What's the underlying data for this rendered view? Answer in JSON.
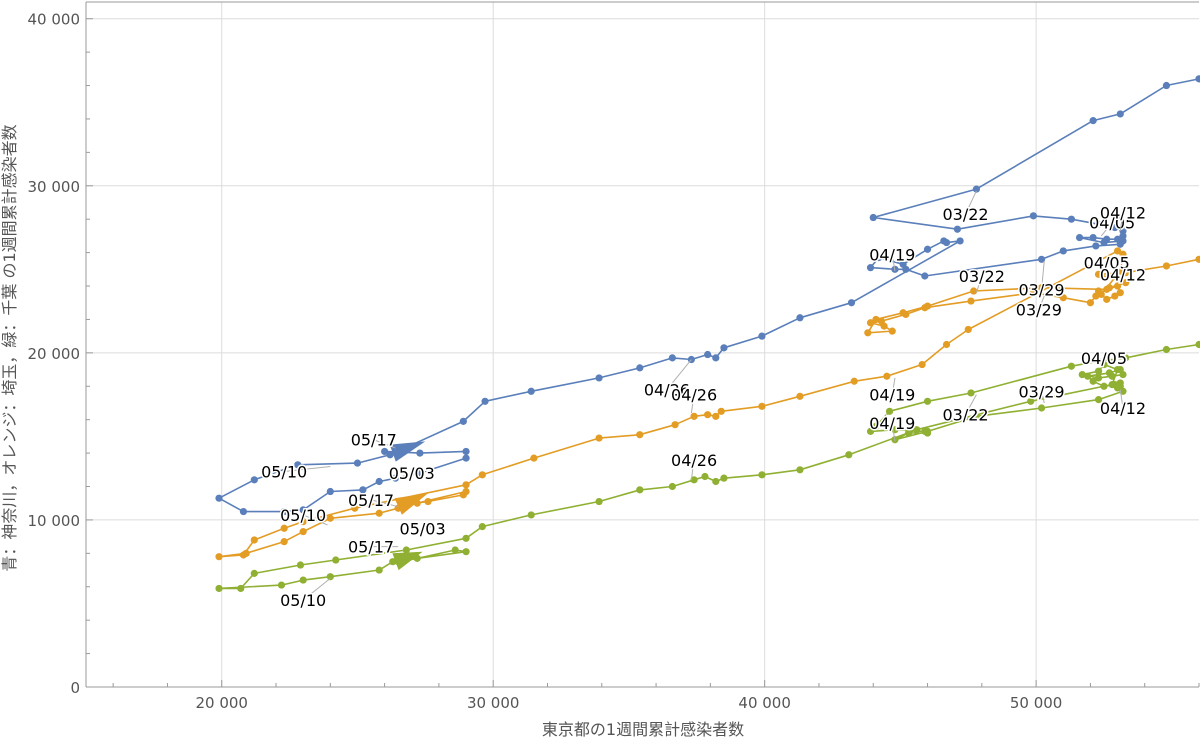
{
  "chart_data": {
    "type": "line",
    "title": "",
    "xlabel": "東京都の1週間累計感染者数",
    "ylabel": "青：神奈川，オレンジ：埼玉，緑：千葉 の1週間累計感染者数",
    "xlim": [
      15000,
      56000
    ],
    "ylim": [
      0,
      41000
    ],
    "grid": true,
    "x_ticks": [
      {
        "value": 20000,
        "label": "20 000"
      },
      {
        "value": 30000,
        "label": "30 000"
      },
      {
        "value": 40000,
        "label": "40 000"
      },
      {
        "value": 50000,
        "label": "50 000"
      }
    ],
    "y_ticks": [
      {
        "value": 0,
        "label": "0"
      },
      {
        "value": 10000,
        "label": "10 000"
      },
      {
        "value": 20000,
        "label": "20 000"
      },
      {
        "value": 30000,
        "label": "30 000"
      },
      {
        "value": 40000,
        "label": "40 000"
      }
    ],
    "series": [
      {
        "color": "#5a7fba",
        "points": [
          [
            56000,
            36400
          ],
          [
            54800,
            36000
          ],
          [
            53100,
            34300
          ],
          [
            52100,
            33900
          ],
          [
            47800,
            29800
          ],
          [
            44000,
            28100
          ],
          [
            47100,
            27400
          ],
          [
            49900,
            28200
          ],
          [
            51300,
            28000
          ],
          [
            52300,
            27700
          ],
          [
            52900,
            27500
          ],
          [
            53200,
            27300
          ],
          [
            53200,
            27000
          ],
          [
            53000,
            26800
          ],
          [
            52600,
            26800
          ],
          [
            52100,
            26900
          ],
          [
            51600,
            26900
          ],
          [
            52500,
            26600
          ],
          [
            53200,
            26700
          ],
          [
            53100,
            26500
          ],
          [
            52200,
            26400
          ],
          [
            51000,
            26100
          ],
          [
            50200,
            25600
          ],
          [
            45900,
            24600
          ],
          [
            45200,
            25000
          ],
          [
            44800,
            25000
          ],
          [
            43900,
            25100
          ],
          [
            44200,
            25700
          ],
          [
            45100,
            25300
          ],
          [
            46000,
            26200
          ],
          [
            46600,
            26700
          ],
          [
            46700,
            26600
          ],
          [
            47200,
            26700
          ],
          [
            43200,
            23000
          ],
          [
            41300,
            22100
          ],
          [
            39900,
            21000
          ],
          [
            38500,
            20300
          ],
          [
            38200,
            19700
          ],
          [
            37900,
            19900
          ],
          [
            37300,
            19600
          ],
          [
            36600,
            19700
          ],
          [
            35400,
            19100
          ],
          [
            33900,
            18500
          ],
          [
            31400,
            17700
          ],
          [
            29700,
            17100
          ],
          [
            28900,
            15900
          ],
          [
            26200,
            13900
          ],
          [
            25000,
            13400
          ],
          [
            22800,
            13300
          ],
          [
            21200,
            12400
          ],
          [
            19900,
            11300
          ],
          [
            20800,
            10500
          ],
          [
            22300,
            10500
          ],
          [
            23000,
            10600
          ],
          [
            24000,
            11700
          ],
          [
            25200,
            11800
          ],
          [
            25800,
            12300
          ],
          [
            26400,
            12500
          ],
          [
            27300,
            12800
          ],
          [
            29000,
            13700
          ],
          [
            29000,
            14100
          ],
          [
            27300,
            14000
          ],
          [
            26000,
            14100
          ]
        ],
        "arrow": {
          "tip": [
            27500,
            14700
          ],
          "back": [
            26300,
            14000
          ]
        }
      },
      {
        "color": "#e39c24",
        "points": [
          [
            56000,
            25600
          ],
          [
            54800,
            25200
          ],
          [
            53300,
            24800
          ],
          [
            52300,
            24700
          ],
          [
            53300,
            24200
          ],
          [
            52700,
            23900
          ],
          [
            52300,
            23700
          ],
          [
            52200,
            23400
          ],
          [
            52000,
            23000
          ],
          [
            51000,
            23300
          ],
          [
            49900,
            23600
          ],
          [
            47600,
            23100
          ],
          [
            45900,
            22700
          ],
          [
            45200,
            22300
          ],
          [
            44300,
            21900
          ],
          [
            43900,
            21800
          ],
          [
            44400,
            21600
          ],
          [
            44700,
            21300
          ],
          [
            43800,
            21200
          ],
          [
            44100,
            22000
          ],
          [
            45100,
            22400
          ],
          [
            46000,
            22800
          ],
          [
            47700,
            23700
          ],
          [
            50200,
            23900
          ],
          [
            52600,
            23800
          ],
          [
            53000,
            24000
          ],
          [
            53100,
            23600
          ],
          [
            52900,
            23400
          ],
          [
            52600,
            23200
          ],
          [
            52400,
            23500
          ],
          [
            53100,
            24900
          ],
          [
            53200,
            25900
          ],
          [
            53000,
            26100
          ],
          [
            47500,
            21400
          ],
          [
            46700,
            20500
          ],
          [
            45800,
            19300
          ],
          [
            44500,
            18600
          ],
          [
            43300,
            18300
          ],
          [
            41300,
            17400
          ],
          [
            39900,
            16800
          ],
          [
            38400,
            16500
          ],
          [
            38200,
            16200
          ],
          [
            37900,
            16300
          ],
          [
            37400,
            16200
          ],
          [
            36700,
            15700
          ],
          [
            35400,
            15100
          ],
          [
            33900,
            14900
          ],
          [
            31500,
            13700
          ],
          [
            29600,
            12700
          ],
          [
            29000,
            12100
          ],
          [
            24900,
            10700
          ],
          [
            23000,
            9900
          ],
          [
            22300,
            9500
          ],
          [
            21200,
            8800
          ],
          [
            20800,
            7900
          ],
          [
            19900,
            7800
          ],
          [
            20900,
            8000
          ],
          [
            22300,
            8700
          ],
          [
            23000,
            9300
          ],
          [
            24000,
            10100
          ],
          [
            25800,
            10400
          ],
          [
            26500,
            10700
          ],
          [
            27200,
            11000
          ],
          [
            29000,
            11700
          ],
          [
            28900,
            11500
          ],
          [
            27600,
            11100
          ],
          [
            26700,
            10900
          ]
        ],
        "arrow": {
          "tip": [
            27600,
            11600
          ],
          "back": [
            26500,
            10800
          ]
        }
      },
      {
        "color": "#8fb032",
        "points": [
          [
            56000,
            20500
          ],
          [
            54800,
            20200
          ],
          [
            53300,
            19700
          ],
          [
            52300,
            19500
          ],
          [
            51300,
            19200
          ],
          [
            47600,
            17600
          ],
          [
            46000,
            17100
          ],
          [
            44600,
            16500
          ],
          [
            44100,
            15600
          ],
          [
            43900,
            15300
          ],
          [
            44800,
            15400
          ],
          [
            45900,
            15300
          ],
          [
            46000,
            15200
          ],
          [
            45300,
            15200
          ],
          [
            44800,
            14800
          ],
          [
            46000,
            15300
          ],
          [
            47800,
            16200
          ],
          [
            50200,
            16700
          ],
          [
            52300,
            17200
          ],
          [
            53200,
            17700
          ],
          [
            53100,
            18000
          ],
          [
            52900,
            18100
          ],
          [
            52500,
            18000
          ],
          [
            52100,
            18300
          ],
          [
            51900,
            18600
          ],
          [
            52700,
            18800
          ],
          [
            53100,
            19000
          ],
          [
            53200,
            18700
          ],
          [
            52800,
            18600
          ],
          [
            52300,
            18500
          ],
          [
            51700,
            18700
          ],
          [
            52300,
            18900
          ],
          [
            52500,
            19300
          ],
          [
            53000,
            19000
          ],
          [
            52800,
            18100
          ],
          [
            53000,
            17900
          ],
          [
            53100,
            18200
          ],
          [
            49800,
            17100
          ],
          [
            45600,
            15400
          ],
          [
            43100,
            13900
          ],
          [
            41300,
            13000
          ],
          [
            39900,
            12700
          ],
          [
            38500,
            12500
          ],
          [
            38200,
            12300
          ],
          [
            37800,
            12600
          ],
          [
            37400,
            12400
          ],
          [
            36600,
            12000
          ],
          [
            35400,
            11800
          ],
          [
            33900,
            11100
          ],
          [
            31400,
            10300
          ],
          [
            29600,
            9600
          ],
          [
            29000,
            8900
          ],
          [
            26800,
            8200
          ],
          [
            24200,
            7600
          ],
          [
            22900,
            7300
          ],
          [
            21200,
            6800
          ],
          [
            20700,
            5900
          ],
          [
            19900,
            5900
          ],
          [
            22200,
            6100
          ],
          [
            23000,
            6400
          ],
          [
            24000,
            6600
          ],
          [
            25800,
            7000
          ],
          [
            26300,
            7500
          ],
          [
            29000,
            8100
          ],
          [
            28600,
            8200
          ],
          [
            27200,
            7700
          ],
          [
            26500,
            7500
          ]
        ],
        "arrow": {
          "tip": [
            27400,
            8100
          ],
          "back": [
            26400,
            7500
          ]
        }
      }
    ],
    "annotations": [
      {
        "text": "05/17",
        "x": 26400,
        "y": 14300,
        "lx": 25600,
        "ly": 14800
      },
      {
        "text": "05/10",
        "x": 24000,
        "y": 13200,
        "lx": 22300,
        "ly": 12900
      },
      {
        "text": "05/03",
        "x": 27200,
        "y": 12700,
        "lx": 27000,
        "ly": 12800
      },
      {
        "text": "05/17",
        "x": 26500,
        "y": 10800,
        "lx": 25500,
        "ly": 11200
      },
      {
        "text": "05/10",
        "x": 23900,
        "y": 9700,
        "lx": 23000,
        "ly": 10300
      },
      {
        "text": "05/03",
        "x": 28100,
        "y": 9700,
        "lx": 27400,
        "ly": 9500
      },
      {
        "text": "05/17",
        "x": 26500,
        "y": 8400,
        "lx": 25500,
        "ly": 8400
      },
      {
        "text": "05/10",
        "x": 24000,
        "y": 6500,
        "lx": 23000,
        "ly": 5200
      },
      {
        "text": "04/26",
        "x": 37300,
        "y": 19600,
        "lx": 36400,
        "ly": 17800
      },
      {
        "text": "04/26",
        "x": 37300,
        "y": 16400,
        "lx": 37400,
        "ly": 17500
      },
      {
        "text": "04/26",
        "x": 37300,
        "y": 12400,
        "lx": 37400,
        "ly": 13600
      },
      {
        "text": "04/19",
        "x": 44800,
        "y": 24900,
        "lx": 44700,
        "ly": 25900
      },
      {
        "text": "04/19",
        "x": 44800,
        "y": 18500,
        "lx": 44700,
        "ly": 17500
      },
      {
        "text": "04/19",
        "x": 44800,
        "y": 14700,
        "lx": 44700,
        "ly": 15800
      },
      {
        "text": "03/22",
        "x": 47800,
        "y": 29700,
        "lx": 47400,
        "ly": 28300
      },
      {
        "text": "03/22",
        "x": 47800,
        "y": 23600,
        "lx": 48000,
        "ly": 24600
      },
      {
        "text": "03/22",
        "x": 47800,
        "y": 17500,
        "lx": 47400,
        "ly": 16300
      },
      {
        "text": "03/29",
        "x": 50300,
        "y": 25500,
        "lx": 50200,
        "ly": 23800
      },
      {
        "text": "03/29",
        "x": 50300,
        "y": 23400,
        "lx": 50100,
        "ly": 22600
      },
      {
        "text": "03/29",
        "x": 50300,
        "y": 17000,
        "lx": 50200,
        "ly": 17700
      },
      {
        "text": "04/05",
        "x": 52400,
        "y": 27000,
        "lx": 52800,
        "ly": 27800
      },
      {
        "text": "04/05",
        "x": 52400,
        "y": 24800,
        "lx": 52600,
        "ly": 25400
      },
      {
        "text": "04/05",
        "x": 52400,
        "y": 19000,
        "lx": 52500,
        "ly": 19700
      },
      {
        "text": "04/12",
        "x": 53100,
        "y": 27300,
        "lx": 53200,
        "ly": 28400
      },
      {
        "text": "04/12",
        "x": 53200,
        "y": 24700,
        "lx": 53200,
        "ly": 24700
      },
      {
        "text": "04/12",
        "x": 53100,
        "y": 17800,
        "lx": 53200,
        "ly": 16700
      }
    ]
  }
}
